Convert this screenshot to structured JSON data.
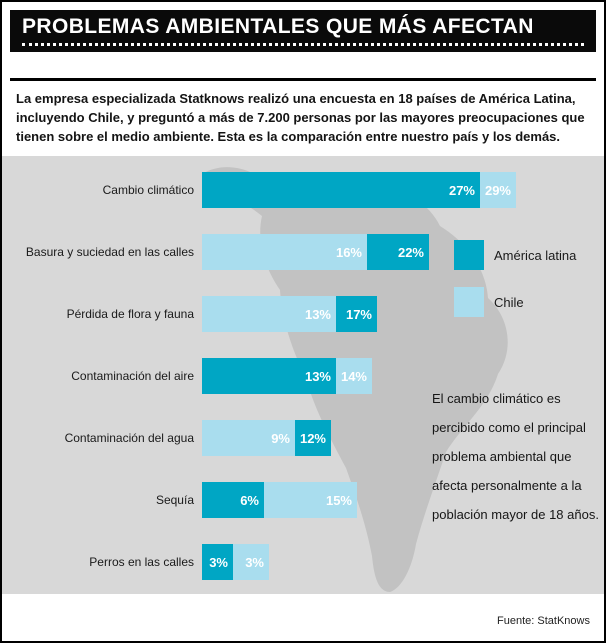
{
  "title": "PROBLEMAS AMBIENTALES QUE MÁS AFECTAN",
  "intro": "La empresa especializada Statknows realizó una encuesta en 18 países de América Latina, incluyendo Chile, y preguntó a más de 7.200 personas por las mayores preocupaciones que tienen sobre el medio ambiente. Esta es la comparación entre nuestro país y los demás.",
  "legend": {
    "items": [
      {
        "label": "América latina",
        "color": "#00a6c4"
      },
      {
        "label": "Chile",
        "color": "#a9ddee"
      }
    ]
  },
  "annotation": {
    "lines": [
      "El cambio climático es",
      "percibido como el principal",
      "problema ambiental que",
      "afecta personalmente a la",
      "población mayor de 18 años."
    ]
  },
  "source": "Fuente: StatKnows",
  "colors": {
    "america_latina": "#00a6c4",
    "chile": "#a9ddee",
    "panel_background": "#d8d8d8",
    "map_silhouette": "#c2c2c2"
  },
  "chart_data": {
    "type": "bar",
    "orientation": "horizontal",
    "unit": "%",
    "title": "Problemas ambientales que más afectan",
    "categories": [
      "Cambio climático",
      "Basura y suciedad en las calles",
      "Pérdida de flora y fauna",
      "Contaminación del aire",
      "Contaminación del agua",
      "Sequía",
      "Perros en las calles"
    ],
    "series": [
      {
        "name": "América latina",
        "color": "#00a6c4",
        "values": [
          27,
          22,
          17,
          13,
          12,
          6,
          3
        ]
      },
      {
        "name": "Chile",
        "color": "#a9ddee",
        "values": [
          29,
          16,
          13,
          14,
          9,
          15,
          3
        ]
      }
    ],
    "xlim": [
      0,
      30
    ],
    "grid": false,
    "legend_position": "right"
  }
}
